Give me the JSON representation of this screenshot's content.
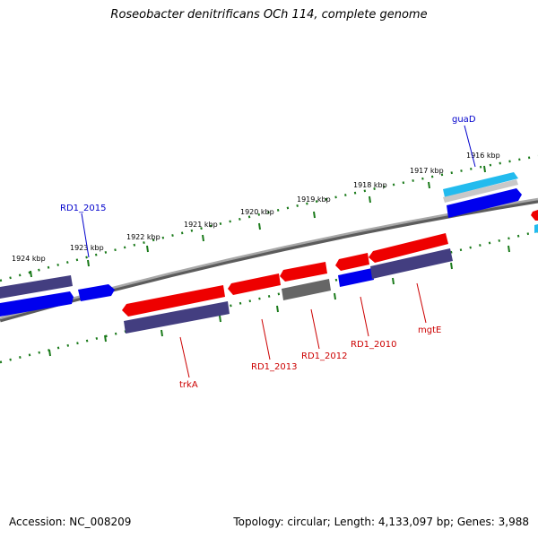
{
  "title": "Roseobacter denitrificans OCh 114, complete genome",
  "footer": {
    "accession": "Accession: NC_008209",
    "summary": "Topology: circular; Length: 4,133,097 bp; Genes: 3,988"
  },
  "ruler_labels": [
    "1924 kbp",
    "1923 kbp",
    "1922 kbp",
    "1921 kbp",
    "1920 kbp",
    "1919 kbp",
    "1918 kbp",
    "1917 kbp",
    "1916 kbp"
  ],
  "gene_labels": [
    {
      "name": "RD1_2015",
      "color": "#0000cc"
    },
    {
      "name": "guaD",
      "color": "#0000cc"
    },
    {
      "name": "trkA",
      "color": "#cc0000"
    },
    {
      "name": "RD1_2013",
      "color": "#cc0000"
    },
    {
      "name": "RD1_2012",
      "color": "#cc0000"
    },
    {
      "name": "RD1_2010",
      "color": "#cc0000"
    },
    {
      "name": "mgtE",
      "color": "#cc0000"
    }
  ],
  "colors": {
    "backbone": "#808080",
    "ruler_ticks": "#1a7a1a",
    "red_feature": "#ee0000",
    "blue_feature": "#0000ee",
    "slate_feature": "#433e80",
    "grey_feature": "#666666",
    "cyan_feature": "#22bbee"
  }
}
